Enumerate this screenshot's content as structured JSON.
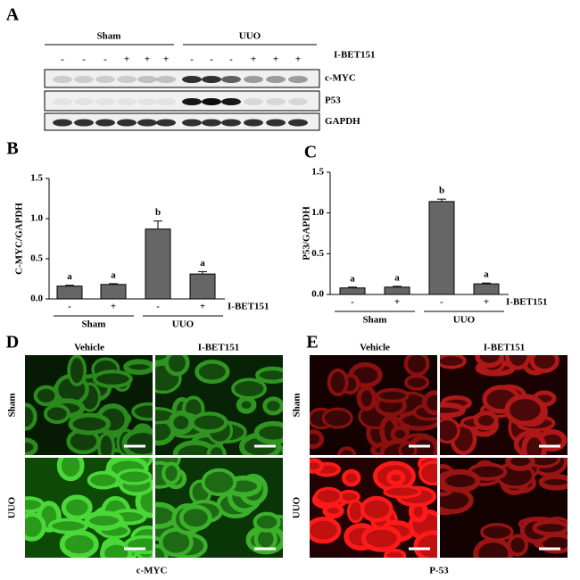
{
  "panels": {
    "a": "A",
    "b": "B",
    "c": "C",
    "d": "D",
    "e": "E"
  },
  "blot": {
    "groups": [
      "Sham",
      "UUO"
    ],
    "treatment_label": "I-BET151",
    "treatment": [
      "-",
      "-",
      "-",
      "+",
      "+",
      "+",
      "-",
      "-",
      "-",
      "+",
      "+",
      "+"
    ],
    "rows": [
      "c-MYC",
      "P53",
      "GAPDH"
    ]
  },
  "chart_data": [
    {
      "type": "bar",
      "y_label": "C-MYC/GAPDH",
      "categories": [
        "-",
        "+",
        "-",
        "+"
      ],
      "groups": [
        "Sham",
        "UUO"
      ],
      "treatment_label": "I-BET151",
      "values": [
        0.16,
        0.18,
        0.87,
        0.31
      ],
      "errors": [
        0.01,
        0.01,
        0.1,
        0.03
      ],
      "annotations": [
        "a",
        "a",
        "b",
        "a"
      ],
      "color": "#666666",
      "ylim": [
        0,
        1.5
      ],
      "yticks": [
        {
          "value": 0,
          "label": "0.0"
        },
        0.5,
        {
          "value": 1,
          "label": "1.0"
        },
        1.5
      ]
    },
    {
      "type": "bar",
      "y_label": "P53/GAPDH",
      "categories": [
        "-",
        "+",
        "-",
        "+"
      ],
      "groups": [
        "Sham",
        "UUO"
      ],
      "treatment_label": "I-BET151",
      "values": [
        0.08,
        0.09,
        1.14,
        0.13
      ],
      "errors": [
        0.01,
        0.01,
        0.03,
        0.01
      ],
      "annotations": [
        "a",
        "a",
        "b",
        "a"
      ],
      "color": "#666666",
      "ylim": [
        0,
        1.5
      ],
      "yticks": [
        {
          "value": 0,
          "label": "0.0"
        },
        0.5,
        {
          "value": 1,
          "label": "1.0"
        },
        1.5
      ]
    }
  ],
  "images": [
    {
      "columns": [
        "Vehicle",
        "I-BET151"
      ],
      "rows": [
        "Sham",
        "UUO"
      ],
      "caption": "c-MYC"
    },
    {
      "columns": [
        "Vehicle",
        "I-BET151"
      ],
      "rows": [
        "Sham",
        "UUO"
      ],
      "caption": "P-53"
    }
  ]
}
